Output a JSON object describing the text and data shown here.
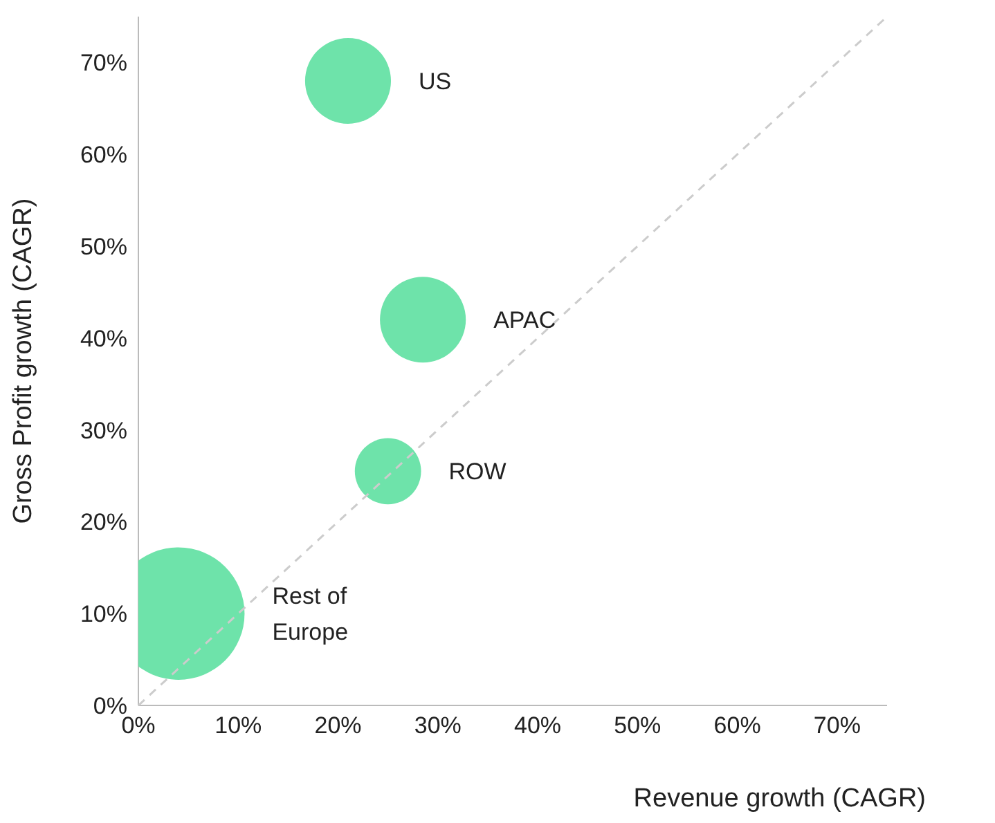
{
  "chart_data": {
    "type": "bubble",
    "xlabel": "Revenue growth (CAGR)",
    "ylabel": "Gross Profit growth (CAGR)",
    "xlim": [
      0,
      75
    ],
    "ylim": [
      0,
      75
    ],
    "xticks": [
      {
        "value": 0,
        "label": "0%"
      },
      {
        "value": 10,
        "label": "10%"
      },
      {
        "value": 20,
        "label": "20%"
      },
      {
        "value": 30,
        "label": "30%"
      },
      {
        "value": 40,
        "label": "40%"
      },
      {
        "value": 50,
        "label": "50%"
      },
      {
        "value": 60,
        "label": "60%"
      },
      {
        "value": 70,
        "label": "70%"
      }
    ],
    "yticks": [
      {
        "value": 0,
        "label": "0%"
      },
      {
        "value": 10,
        "label": "10%"
      },
      {
        "value": 20,
        "label": "20%"
      },
      {
        "value": 30,
        "label": "30%"
      },
      {
        "value": 40,
        "label": "40%"
      },
      {
        "value": 50,
        "label": "50%"
      },
      {
        "value": 60,
        "label": "60%"
      },
      {
        "value": 70,
        "label": "70%"
      }
    ],
    "grid": false,
    "legend": false,
    "marker": "circle",
    "series": [
      {
        "name": "US",
        "color": "#6ee3aa",
        "x": [
          21
        ],
        "values": [
          68
        ],
        "sizes": [
          0.42
        ]
      },
      {
        "name": "APAC",
        "color": "#6ee3aa",
        "x": [
          28.5
        ],
        "values": [
          42
        ],
        "sizes": [
          0.42
        ]
      },
      {
        "name": "ROW",
        "color": "#6ee3aa",
        "x": [
          25
        ],
        "values": [
          25.5
        ],
        "sizes": [
          0.25
        ]
      },
      {
        "name": "Rest of Europe",
        "color": "#6ee3aa",
        "x": [
          4
        ],
        "values": [
          10
        ],
        "sizes": [
          1
        ]
      },
      {
        "type": "line",
        "color": "#cccccc",
        "line_style": "dashed",
        "marker": "none",
        "x": [
          0,
          75
        ],
        "values": [
          0,
          75
        ]
      }
    ]
  }
}
